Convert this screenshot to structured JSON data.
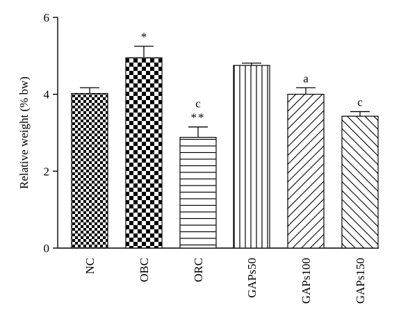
{
  "chart_data": {
    "type": "bar",
    "title": "",
    "xlabel": "",
    "ylabel": "Relative weight (% bw)",
    "ylim": [
      0,
      6
    ],
    "yticks": [
      0,
      2,
      4,
      6
    ],
    "categories": [
      "NC",
      "OBC",
      "ORC",
      "GAPs50",
      "GAPs100",
      "GAPs150"
    ],
    "values": [
      4.02,
      4.95,
      2.88,
      4.75,
      4.0,
      3.43
    ],
    "errors": [
      0.15,
      0.3,
      0.27,
      0.06,
      0.17,
      0.12
    ],
    "patterns": [
      "small-checker",
      "large-checker",
      "horizontal-lines",
      "vertical-lines",
      "diagonal-lines-up",
      "diagonal-lines-down"
    ],
    "annotations": [
      {
        "category": "OBC",
        "lines": [
          "*"
        ]
      },
      {
        "category": "ORC",
        "lines": [
          "c",
          "**"
        ]
      },
      {
        "category": "GAPs100",
        "lines": [
          "a"
        ]
      },
      {
        "category": "GAPs150",
        "lines": [
          "c"
        ]
      }
    ],
    "grid": false,
    "legend": "none"
  }
}
